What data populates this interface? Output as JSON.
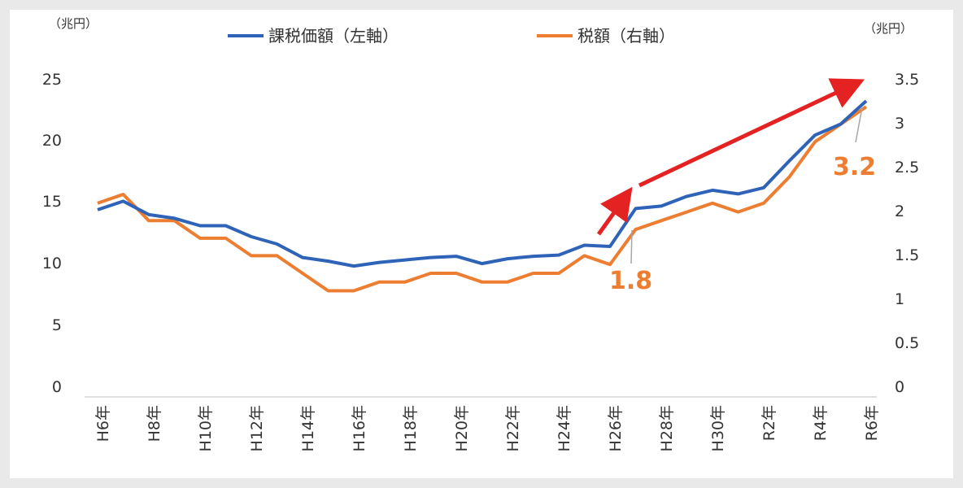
{
  "chart_data": {
    "type": "line",
    "left_axis_unit": "（兆円）",
    "right_axis_unit": "（兆円）",
    "left_ticks": [
      "0",
      "5",
      "10",
      "15",
      "20",
      "25"
    ],
    "right_ticks": [
      "0",
      "0.5",
      "1",
      "1.5",
      "2",
      "2.5",
      "3",
      "3.5"
    ],
    "ylim_left": [
      0,
      25
    ],
    "ylim_right": [
      0,
      3.5
    ],
    "x_tick_labels": [
      "H6年",
      "H8年",
      "H10年",
      "H12年",
      "H14年",
      "H16年",
      "H18年",
      "H20年",
      "H22年",
      "H24年",
      "H26年",
      "H28年",
      "H30年",
      "R2年",
      "R4年",
      "R6年"
    ],
    "series": [
      {
        "name": "課税価額（左軸）",
        "axis": "left",
        "color": "#2e63b8",
        "values": [
          14.5,
          15.2,
          14.1,
          13.8,
          13.2,
          13.2,
          12.3,
          11.7,
          10.6,
          10.3,
          9.9,
          10.2,
          10.4,
          10.6,
          10.7,
          10.1,
          10.5,
          10.7,
          10.8,
          11.6,
          11.5,
          14.6,
          14.8,
          15.6,
          16.1,
          15.8,
          16.3,
          18.5,
          20.6,
          21.5,
          23.4
        ]
      },
      {
        "name": "税額（右軸）",
        "axis": "right",
        "color": "#ed7d31",
        "values": [
          2.1,
          2.2,
          1.9,
          1.9,
          1.7,
          1.7,
          1.5,
          1.5,
          1.3,
          1.1,
          1.1,
          1.2,
          1.2,
          1.3,
          1.3,
          1.2,
          1.2,
          1.3,
          1.3,
          1.5,
          1.4,
          1.8,
          1.9,
          2.0,
          2.1,
          2.0,
          2.1,
          2.4,
          2.8,
          3.0,
          3.2
        ]
      }
    ],
    "annotations": [
      "1.8",
      "3.2"
    ]
  }
}
